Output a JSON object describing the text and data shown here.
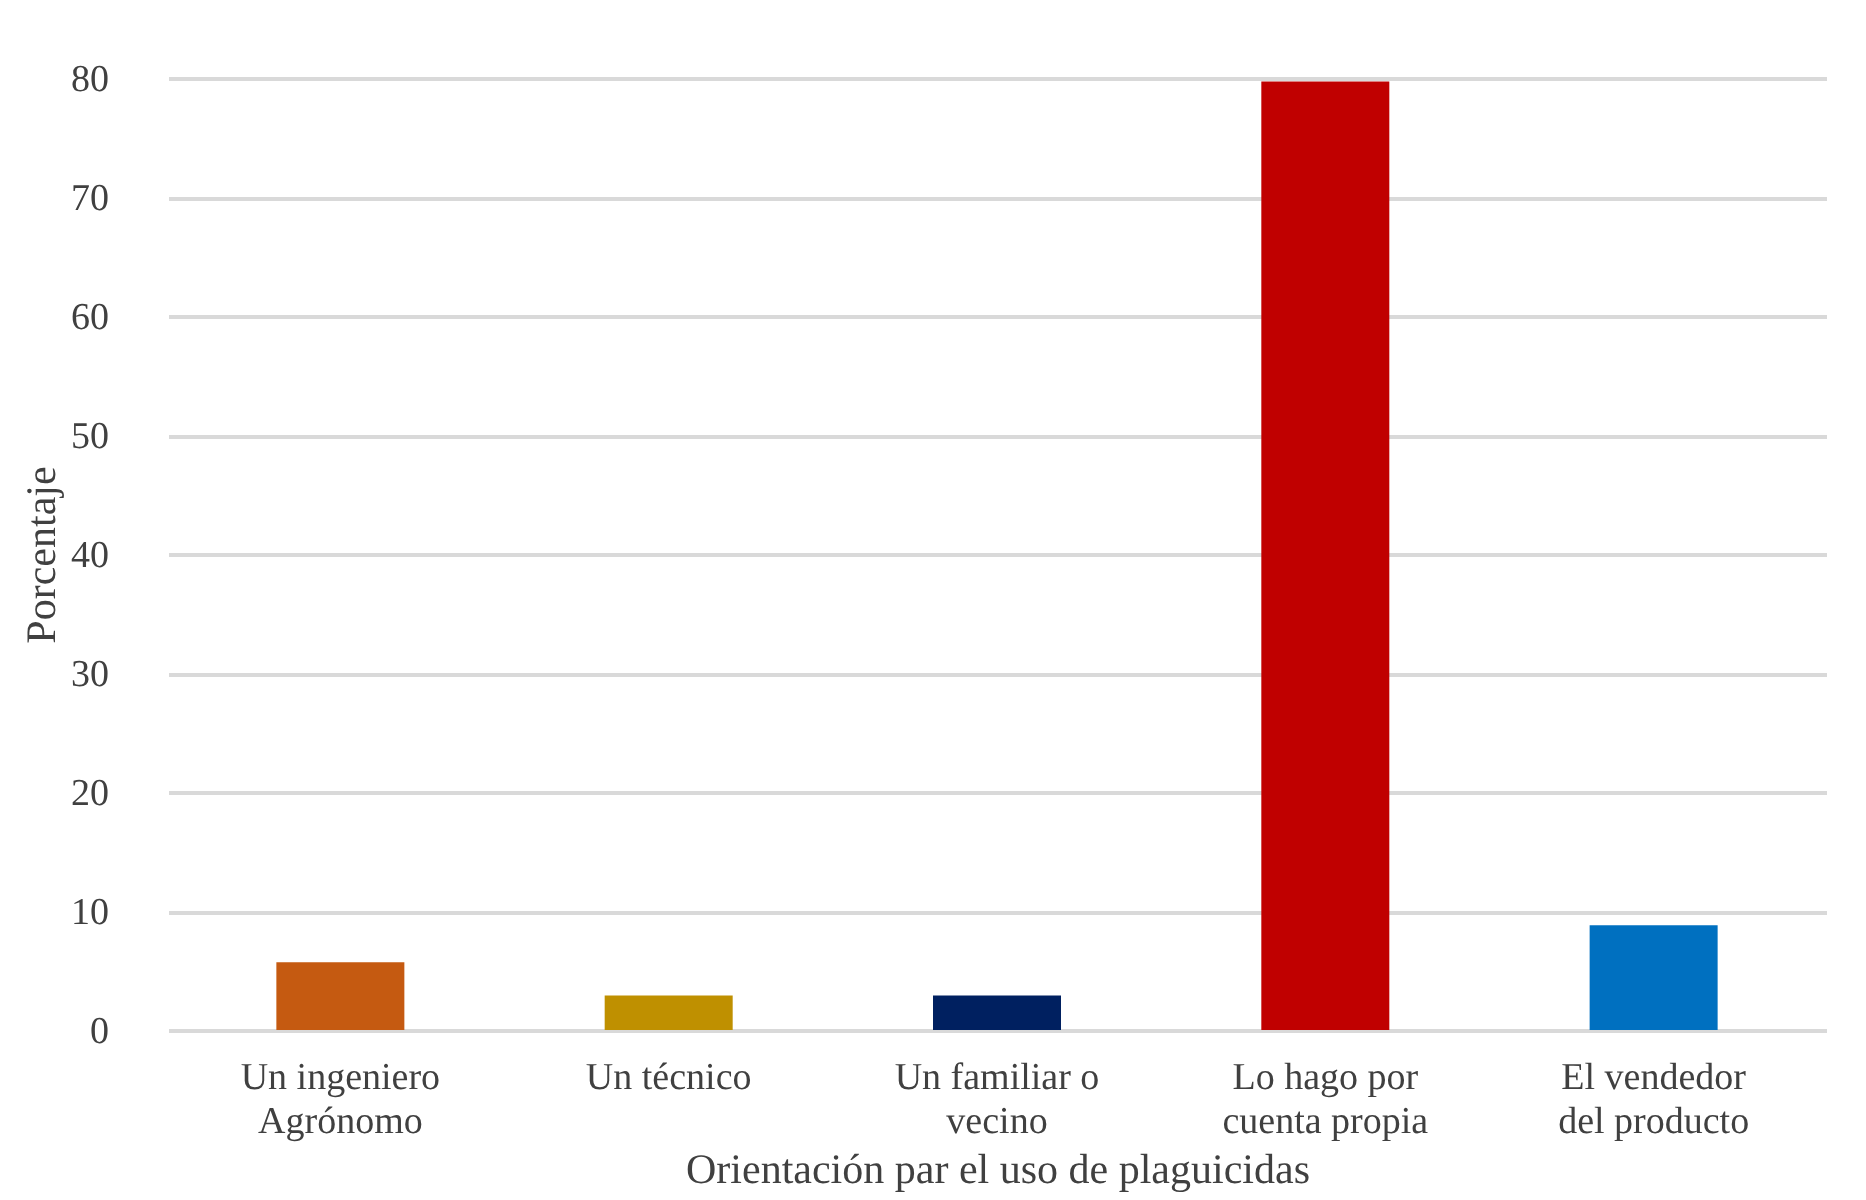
{
  "chart_data": {
    "type": "bar",
    "xlabel": "Orientación par el uso de plaguicidas",
    "ylabel": "Porcentaje",
    "categories": [
      "Un ingeniero Agrónomo",
      "Un técnico",
      "Un familiar o vecino",
      "Lo hago por cuenta propia",
      "El vendedor del producto"
    ],
    "values": [
      5.7,
      2.9,
      2.9,
      79.7,
      8.8
    ],
    "colors": [
      "#c55a11",
      "#bf9000",
      "#002060",
      "#c00000",
      "#0070c0"
    ],
    "ylim": [
      0,
      80
    ],
    "yticks": [
      0,
      10,
      20,
      30,
      40,
      50,
      60,
      70,
      80
    ],
    "grid": "y",
    "legend": false
  }
}
